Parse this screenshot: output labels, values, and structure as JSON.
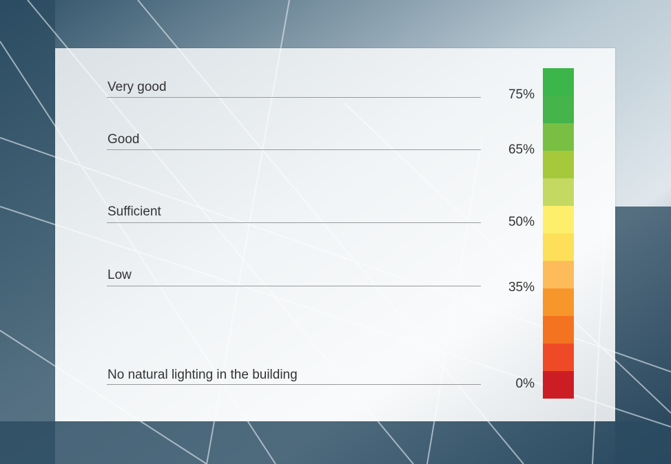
{
  "levels": [
    {
      "label": "Very good",
      "threshold": "75%"
    },
    {
      "label": "Good",
      "threshold": "65%"
    },
    {
      "label": "Sufficient",
      "threshold": "50%"
    },
    {
      "label": "Low",
      "threshold": "35%"
    },
    {
      "label": "No natural lighting in the building",
      "threshold": "0%"
    }
  ]
}
